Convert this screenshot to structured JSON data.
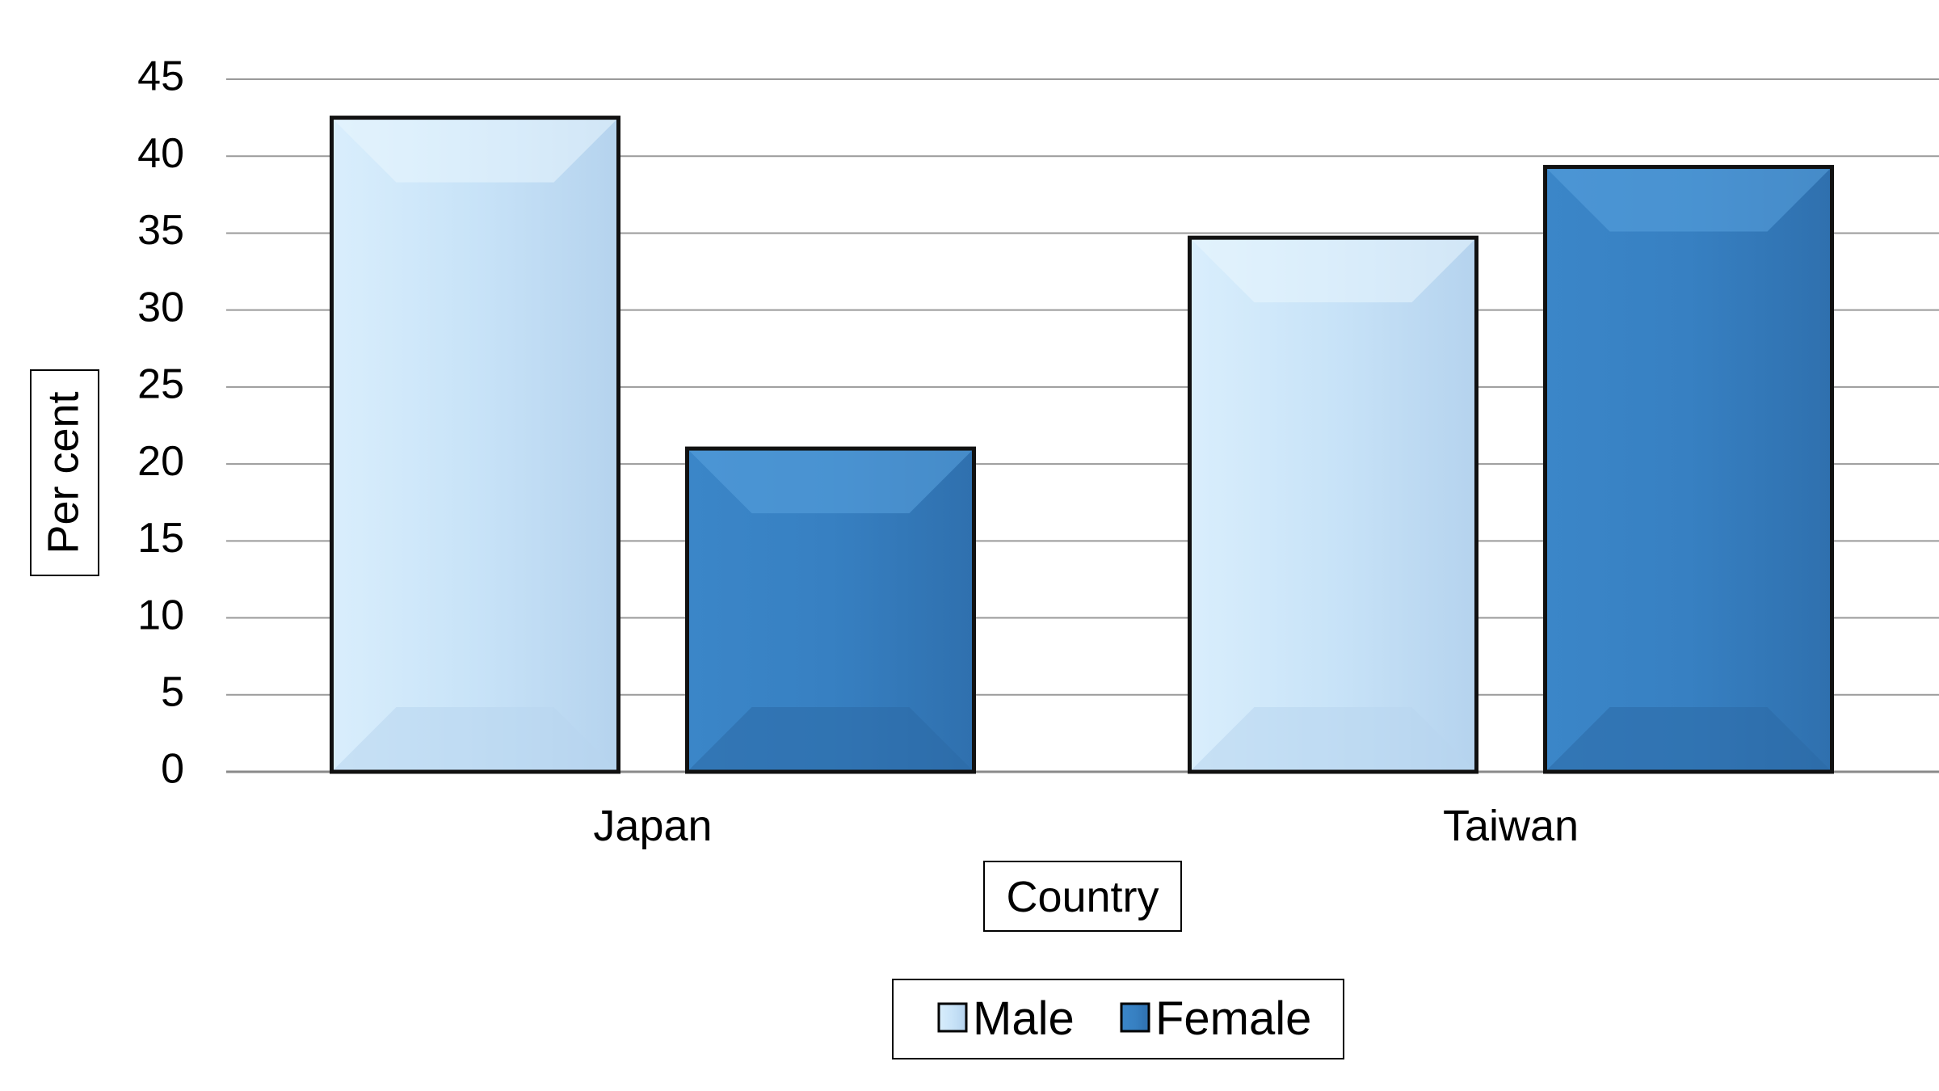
{
  "chart_data": {
    "type": "bar",
    "categories": [
      "Japan",
      "Taiwan"
    ],
    "series": [
      {
        "name": "Male",
        "values": [
          42.5,
          34.7
        ],
        "color": "#c9e3f7"
      },
      {
        "name": "Female",
        "values": [
          21.0,
          39.3
        ],
        "color": "#3a82c4"
      }
    ],
    "xlabel": "Country",
    "ylabel": "Per cent",
    "ylim": [
      0,
      45
    ],
    "yticks": [
      "0",
      "5",
      "10",
      "15",
      "20",
      "25",
      "30",
      "35",
      "40",
      "45"
    ],
    "grid": true,
    "legend_position": "bottom"
  }
}
